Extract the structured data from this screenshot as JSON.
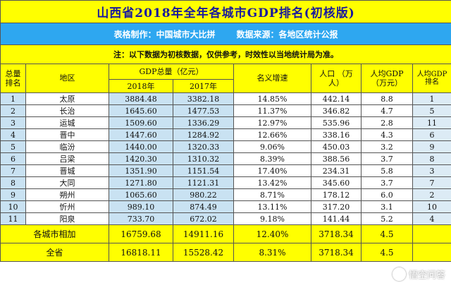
{
  "title": "山西省2018年全年各城市GDP排名(初核版)",
  "subtitle": {
    "maker": "表格制作：中国城市大比拼",
    "source": "数据来源：各地区统计公报"
  },
  "note": "注：以下数据为初核数据，仅供参考，时效性以当地统计局为准。",
  "headers": {
    "rank": "总量排名",
    "region": "地区",
    "gdp_total": "GDP总量（亿元）",
    "year_2018": "2018年",
    "year_2017": "2017年",
    "growth": "名义增速",
    "population": "人口 （万人）",
    "gdp_per_capita": "人均GDP（万元）",
    "per_capita_rank": "人均GDP排名"
  },
  "rows": [
    {
      "rank": "1",
      "region": "太原",
      "gdp2018": "3884.48",
      "gdp2017": "3382.18",
      "growth": "14.85%",
      "pop": "442.14",
      "per_capita": "8.8",
      "pc_rank": "1"
    },
    {
      "rank": "2",
      "region": "长治",
      "gdp2018": "1645.60",
      "gdp2017": "1477.53",
      "growth": "11.37%",
      "pop": "346.82",
      "per_capita": "4.7",
      "pc_rank": "5"
    },
    {
      "rank": "3",
      "region": "运城",
      "gdp2018": "1509.60",
      "gdp2017": "1336.29",
      "growth": "12.97%",
      "pop": "535.96",
      "per_capita": "2.8",
      "pc_rank": "11"
    },
    {
      "rank": "4",
      "region": "晋中",
      "gdp2018": "1447.60",
      "gdp2017": "1284.92",
      "growth": "12.66%",
      "pop": "338.16",
      "per_capita": "4.3",
      "pc_rank": "6"
    },
    {
      "rank": "5",
      "region": "临汾",
      "gdp2018": "1440.00",
      "gdp2017": "1320.33",
      "growth": "9.06%",
      "pop": "450.03",
      "per_capita": "3.2",
      "pc_rank": "9"
    },
    {
      "rank": "6",
      "region": "吕梁",
      "gdp2018": "1420.30",
      "gdp2017": "1310.32",
      "growth": "8.39%",
      "pop": "388.56",
      "per_capita": "3.7",
      "pc_rank": "8"
    },
    {
      "rank": "7",
      "region": "晋城",
      "gdp2018": "1351.90",
      "gdp2017": "1151.54",
      "growth": "17.40%",
      "pop": "234.31",
      "per_capita": "5.8",
      "pc_rank": "3"
    },
    {
      "rank": "8",
      "region": "大同",
      "gdp2018": "1271.80",
      "gdp2017": "1121.31",
      "growth": "13.42%",
      "pop": "345.60",
      "per_capita": "3.7",
      "pc_rank": "7"
    },
    {
      "rank": "9",
      "region": "朔州",
      "gdp2018": "1065.60",
      "gdp2017": "980.22",
      "growth": "8.71%",
      "pop": "178.12",
      "per_capita": "6.0",
      "pc_rank": "2"
    },
    {
      "rank": "10",
      "region": "忻州",
      "gdp2018": "989.10",
      "gdp2017": "874.49",
      "growth": "13.11%",
      "pop": "317.20",
      "per_capita": "3.1",
      "pc_rank": "10"
    },
    {
      "rank": "11",
      "region": "阳泉",
      "gdp2018": "733.70",
      "gdp2017": "672.02",
      "growth": "9.18%",
      "pop": "141.44",
      "per_capita": "5.2",
      "pc_rank": "4"
    }
  ],
  "summary": {
    "label": "各城市相加",
    "gdp2018": "16759.68",
    "gdp2017": "14911.16",
    "growth": "12.40%",
    "pop": "3718.34",
    "per_capita": "4.5",
    "pc_rank": ""
  },
  "total": {
    "label": "全省",
    "gdp2018": "16818.11",
    "gdp2017": "15528.42",
    "growth": "8.31%",
    "pop": "3718.34",
    "per_capita": "4.5",
    "pc_rank": ""
  },
  "watermark": {
    "icon": "wukong-logo-icon",
    "text": "悟空问答"
  }
}
